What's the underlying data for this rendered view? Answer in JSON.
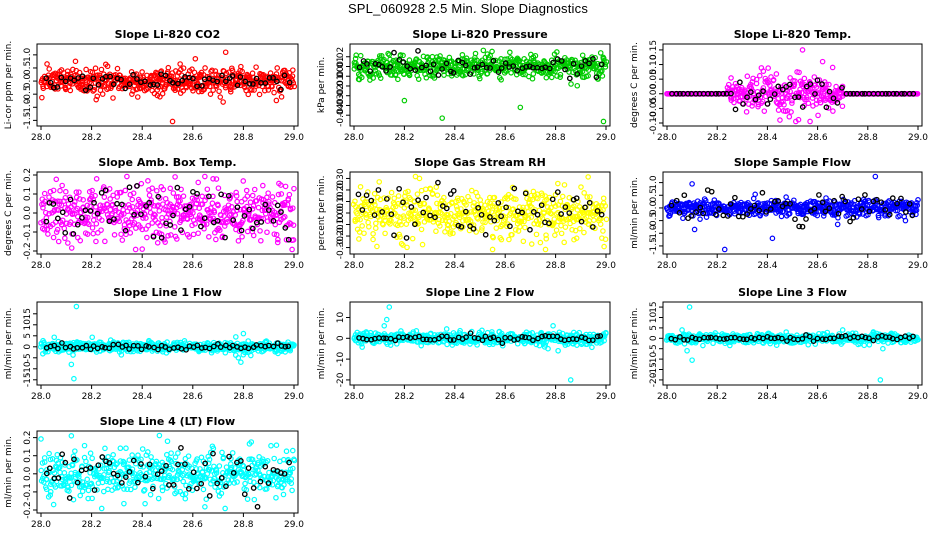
{
  "page": {
    "title": "SPL_060928  2.5 Min. Slope Diagnostics"
  },
  "chart_data": [
    {
      "type": "scatter",
      "title": "Slope Li-820 CO2",
      "ylabel": "Li-cor ppm per min.",
      "color": "#ff0000",
      "xlim": [
        28.0,
        29.0
      ],
      "ylim": [
        -1.6,
        1.3
      ],
      "yticks": [
        -1.5,
        -1.0,
        -0.5,
        0.0,
        0.5,
        1.0
      ],
      "xticks": [
        28.0,
        28.2,
        28.4,
        28.6,
        28.8,
        29.0
      ],
      "base": 0.0,
      "noise": 0.25,
      "black_noise": 0.15,
      "outliers": [
        [
          28.46,
          -0.55
        ],
        [
          28.47,
          -0.6
        ],
        [
          28.52,
          -1.6
        ],
        [
          28.53,
          -0.35
        ],
        [
          28.72,
          -0.8
        ],
        [
          28.73,
          1.1
        ],
        [
          28.61,
          0.85
        ],
        [
          28.55,
          0.65
        ],
        [
          28.67,
          -0.5
        ],
        [
          28.79,
          0.55
        ]
      ]
    },
    {
      "type": "scatter",
      "title": "Slope Li-820 Pressure",
      "ylabel": "kPa per min.",
      "color": "#00cc00",
      "xlim": [
        28.0,
        29.0
      ],
      "ylim": [
        -0.048,
        0.03
      ],
      "yticks": [
        -0.04,
        -0.03,
        -0.02,
        -0.01,
        0.0,
        0.01,
        0.02
      ],
      "xticks": [
        28.0,
        28.2,
        28.4,
        28.6,
        28.8,
        29.0
      ],
      "base": 0.01,
      "noise": 0.006,
      "black_noise": 0.005,
      "outliers": [
        [
          28.35,
          -0.043
        ],
        [
          28.66,
          -0.032
        ],
        [
          28.99,
          -0.047
        ],
        [
          28.2,
          -0.025
        ],
        [
          28.14,
          0.022
        ],
        [
          28.43,
          0.022
        ],
        [
          28.72,
          0.021
        ]
      ]
    },
    {
      "type": "scatter",
      "title": "Slope Li-820 Temp.",
      "ylabel": "degrees C per min.",
      "color": "#ff00ff",
      "xlim": [
        28.0,
        29.0
      ],
      "ylim": [
        -0.1,
        0.16
      ],
      "yticks": [
        -0.1,
        -0.05,
        0.0,
        0.05,
        0.1,
        0.15
      ],
      "xticks": [
        28.0,
        28.2,
        28.4,
        28.6,
        28.8,
        29.0
      ],
      "base": 0.0,
      "noise": 0.0,
      "black_noise": 0.0,
      "spread_range": [
        28.24,
        28.7
      ],
      "spread_noise": 0.04,
      "outliers": [
        [
          28.54,
          0.15
        ],
        [
          28.62,
          0.11
        ],
        [
          28.45,
          -0.09
        ],
        [
          28.57,
          -0.1
        ],
        [
          28.32,
          0.06
        ],
        [
          28.66,
          0.09
        ]
      ]
    },
    {
      "type": "scatter",
      "title": "Slope Amb. Box Temp.",
      "ylabel": "degrees C per min.",
      "color": "#ff00ff",
      "xlim": [
        28.0,
        29.0
      ],
      "ylim": [
        -0.2,
        0.2
      ],
      "yticks": [
        -0.2,
        -0.1,
        0.0,
        0.1,
        0.2
      ],
      "xticks": [
        28.0,
        28.2,
        28.4,
        28.6,
        28.8,
        29.0
      ],
      "base": 0.0,
      "noise": 0.07,
      "black_noise": 0.07,
      "outliers": [
        [
          28.4,
          -0.19
        ],
        [
          28.53,
          0.19
        ],
        [
          28.68,
          0.18
        ],
        [
          28.07,
          -0.15
        ],
        [
          28.22,
          0.18
        ]
      ]
    },
    {
      "type": "scatter",
      "title": "Slope Gas Stream RH",
      "ylabel": "percent per min.",
      "color": "#ffff00",
      "xlim": [
        28.0,
        29.0
      ],
      "ylim": [
        -0.33,
        0.33
      ],
      "yticks": [
        -0.3,
        -0.2,
        -0.1,
        0.0,
        0.1,
        0.2,
        0.3
      ],
      "xticks": [
        28.0,
        28.2,
        28.4,
        28.6,
        28.8,
        29.0
      ],
      "base": 0.0,
      "noise": 0.11,
      "black_noise": 0.11,
      "outliers": [
        [
          28.26,
          0.3
        ],
        [
          28.76,
          -0.33
        ],
        [
          28.55,
          -0.32
        ],
        [
          28.1,
          0.27
        ]
      ]
    },
    {
      "type": "scatter",
      "title": "Slope Sample Flow",
      "ylabel": "ml/min per min.",
      "color": "#0000ff",
      "xlim": [
        28.0,
        29.0
      ],
      "ylim": [
        -1.7,
        1.3
      ],
      "yticks": [
        -1.5,
        -1.0,
        -0.5,
        0.0,
        0.5,
        1.0
      ],
      "xticks": [
        28.0,
        28.2,
        28.4,
        28.6,
        28.8,
        29.0
      ],
      "base": 0.0,
      "noise": 0.15,
      "black_noise": 0.3,
      "outliers": [
        [
          28.83,
          1.25
        ],
        [
          28.11,
          -0.85
        ],
        [
          28.1,
          0.95
        ],
        [
          28.23,
          -1.7
        ],
        [
          28.42,
          -1.2
        ],
        [
          28.68,
          -0.65
        ],
        [
          28.95,
          -0.5
        ]
      ]
    },
    {
      "type": "scatter",
      "title": "Slope Line 1 Flow",
      "ylabel": "ml/min per min.",
      "color": "#00ffff",
      "xlim": [
        28.0,
        29.0
      ],
      "ylim": [
        -16,
        19
      ],
      "yticks": [
        -15,
        -10,
        -5,
        0,
        5,
        10,
        15
      ],
      "xticks": [
        28.0,
        28.2,
        28.4,
        28.6,
        28.8,
        29.0
      ],
      "base": 0.0,
      "noise": 1.2,
      "black_noise": 0.6,
      "outliers": [
        [
          28.14,
          18.5
        ],
        [
          28.13,
          -14.5
        ],
        [
          28.12,
          -8
        ],
        [
          28.79,
          -7
        ],
        [
          28.78,
          -5
        ],
        [
          28.8,
          6
        ],
        [
          28.77,
          4.5
        ]
      ]
    },
    {
      "type": "scatter",
      "title": "Slope Line 2 Flow",
      "ylabel": "ml/min per min.",
      "color": "#00ffff",
      "xlim": [
        28.0,
        29.0
      ],
      "ylim": [
        -21,
        16
      ],
      "yticks": [
        -20,
        -10,
        0,
        10
      ],
      "xticks": [
        28.0,
        28.2,
        28.4,
        28.6,
        28.8,
        29.0
      ],
      "base": 0.0,
      "noise": 1.5,
      "black_noise": 0.8,
      "outliers": [
        [
          28.14,
          15
        ],
        [
          28.13,
          9
        ],
        [
          28.12,
          6
        ],
        [
          28.86,
          -20
        ],
        [
          28.81,
          -6
        ],
        [
          28.77,
          -5
        ],
        [
          28.79,
          6
        ]
      ]
    },
    {
      "type": "scatter",
      "title": "Slope Line 3 Flow",
      "ylabel": "ml/min per min.",
      "color": "#00ffff",
      "xlim": [
        28.0,
        29.0
      ],
      "ylim": [
        -21,
        16
      ],
      "yticks": [
        -20,
        -15,
        -10,
        -5,
        0,
        5,
        10,
        15
      ],
      "xticks": [
        28.0,
        28.2,
        28.4,
        28.6,
        28.8,
        29.0
      ],
      "base": 0.0,
      "noise": 1.2,
      "black_noise": 0.6,
      "outliers": [
        [
          28.09,
          15
        ],
        [
          28.1,
          -10.5
        ],
        [
          28.08,
          -6
        ],
        [
          28.85,
          -20
        ],
        [
          28.86,
          -5
        ],
        [
          28.7,
          4
        ],
        [
          28.06,
          4
        ]
      ]
    },
    {
      "type": "scatter",
      "title": "Slope Line 4 (LT) Flow",
      "ylabel": "ml/min per min.",
      "color": "#00ffff",
      "xlim": [
        28.0,
        29.0
      ],
      "ylim": [
        -0.2,
        0.22
      ],
      "yticks": [
        -0.2,
        -0.1,
        0.0,
        0.1,
        0.2
      ],
      "xticks": [
        28.0,
        28.2,
        28.4,
        28.6,
        28.8,
        29.0
      ],
      "base": 0.0,
      "noise": 0.065,
      "black_noise": 0.07,
      "outliers": [
        [
          28.12,
          0.21
        ],
        [
          28.24,
          -0.2
        ],
        [
          28.05,
          -0.17
        ],
        [
          28.5,
          0.18
        ]
      ]
    }
  ]
}
